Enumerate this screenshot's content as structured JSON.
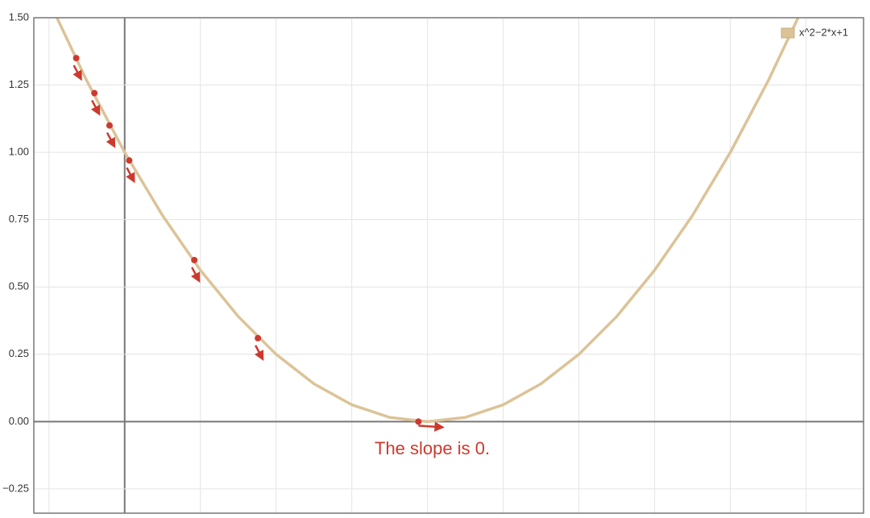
{
  "chart_data": {
    "type": "line",
    "series": [
      {
        "name": "x^2−2*x+1",
        "color": "#dcc397",
        "x": [
          -0.25,
          -0.125,
          0,
          0.125,
          0.25,
          0.375,
          0.5,
          0.625,
          0.75,
          0.875,
          1,
          1.125,
          1.25,
          1.375,
          1.5,
          1.625,
          1.75,
          1.875,
          2,
          2.125,
          2.25
        ],
        "values": [
          1.5625,
          1.265625,
          1,
          0.765625,
          0.5625,
          0.390625,
          0.25,
          0.140625,
          0.0625,
          0.015625,
          0,
          0.015625,
          0.0625,
          0.140625,
          0.25,
          0.390625,
          0.5625,
          0.765625,
          1,
          1.265625,
          1.5625
        ]
      }
    ],
    "markers": {
      "color": "#cc3a2e",
      "x": [
        -0.16,
        -0.1,
        -0.05,
        0.015,
        0.23,
        0.44,
        0.97
      ],
      "values": [
        1.35,
        1.22,
        1.1,
        0.97,
        0.6,
        0.31,
        0.0
      ]
    },
    "annotation": "The slope is 0.",
    "xlim": [
      -0.3,
      2.44
    ],
    "ylim": [
      -0.34,
      1.5
    ],
    "xticks": [
      -0.25,
      0,
      0.25,
      0.5,
      0.75,
      1,
      1.25,
      1.5,
      1.75,
      2,
      2.25
    ],
    "yticks": [
      {
        "value": 1.5,
        "label": "1.50"
      },
      1.25,
      {
        "value": 1,
        "label": "1.00"
      },
      0.75,
      {
        "value": 0.5,
        "label": "0.50"
      },
      0.25,
      {
        "value": 0,
        "label": "0.00"
      },
      {
        "value": -0.25,
        "label": "−0.25"
      }
    ],
    "grid": true,
    "legend": "top-right"
  }
}
